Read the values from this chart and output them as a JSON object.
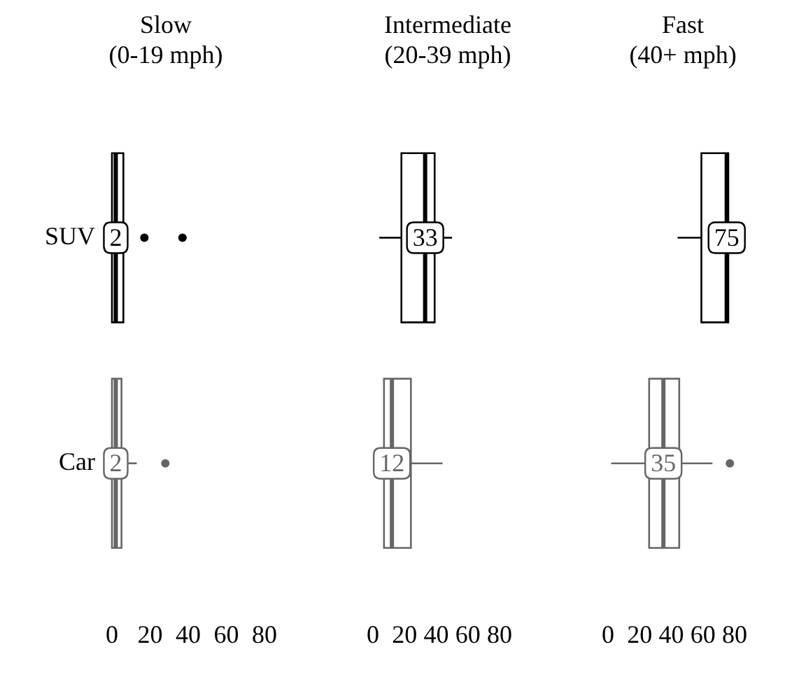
{
  "chart_data": [
    {
      "type": "box",
      "title": "Slow\n(0-19 mph)",
      "orientation": "horizontal",
      "categories": [
        "SUV",
        "Car"
      ],
      "colors": [
        "#000000",
        "#666666"
      ],
      "boxes": [
        {
          "low": 0,
          "q1": 0,
          "median": 2,
          "q3": 6,
          "high": 6,
          "outliers": [
            17,
            37
          ]
        },
        {
          "low": 0,
          "q1": 0,
          "median": 2,
          "q3": 5,
          "high": 13,
          "outliers": [
            28
          ]
        }
      ],
      "annotations": [
        {
          "text": "2",
          "x": 2,
          "y": "SUV"
        },
        {
          "text": "2",
          "x": 2,
          "y": "Car"
        }
      ],
      "xlim": [
        0,
        80
      ],
      "xticks": [
        0,
        20,
        40,
        60,
        80
      ]
    },
    {
      "type": "box",
      "title": "Intermediate\n(20-39 mph)",
      "orientation": "horizontal",
      "categories": [
        "SUV",
        "Car"
      ],
      "colors": [
        "#000000",
        "#666666"
      ],
      "boxes": [
        {
          "low": 4,
          "q1": 18,
          "median": 33,
          "q3": 39,
          "high": 50
        },
        {
          "low": 1,
          "q1": 7,
          "median": 12,
          "q3": 24,
          "high": 44
        }
      ],
      "annotations": [
        {
          "text": "33",
          "x": 33,
          "y": "SUV"
        },
        {
          "text": "12",
          "x": 12,
          "y": "Car"
        }
      ],
      "xlim": [
        0,
        80
      ],
      "xticks": [
        0,
        20,
        40,
        60,
        80
      ],
      "tick_labels": "x"
    },
    {
      "type": "box",
      "title": "Fast\n(40+ mph)",
      "orientation": "horizontal",
      "categories": [
        "SUV",
        "Car"
      ],
      "colors": [
        "#000000",
        "#666666"
      ],
      "boxes": [
        {
          "low": 44,
          "q1": 59,
          "median": 75,
          "q3": 76,
          "high": 76
        },
        {
          "low": 2,
          "q1": 26,
          "median": 35,
          "q3": 45,
          "high": 66,
          "outliers": [
            77
          ]
        }
      ],
      "annotations": [
        {
          "text": "75",
          "x": 75,
          "y": "SUV"
        },
        {
          "text": "35",
          "x": 35,
          "y": "Car"
        }
      ],
      "xlim": [
        0,
        80
      ],
      "xticks": [
        0,
        20,
        40,
        60,
        80
      ],
      "tick_labels": "x"
    }
  ]
}
